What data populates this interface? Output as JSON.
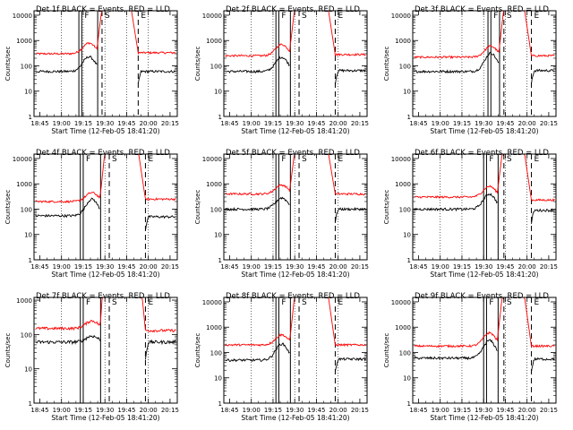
{
  "figure": {
    "xlabel": "Start Time (12-Feb-05 18:41:20)",
    "ylabel": "Counts/sec",
    "x_ticks": [
      "18:45",
      "19:00",
      "19:15",
      "19:30",
      "19:45",
      "20:00",
      "20:15"
    ],
    "y_ticks": [
      "1",
      "10",
      "100",
      "1000",
      "10000"
    ],
    "marker_labels": [
      "F",
      "S",
      "E"
    ]
  },
  "colors": {
    "events": "#000000",
    "lld": "#ff0000"
  },
  "chart_data": [
    {
      "title": "Det 1f BLACK = Events, RED = LLD",
      "type": "line",
      "xlim": [
        "18:41",
        "20:20"
      ],
      "ylim": [
        1,
        15000
      ],
      "yscale": "log",
      "events_base": 60,
      "events_peak": 230,
      "events_after": 60,
      "lld_base": 300,
      "lld_peak": 800,
      "lld_after": 330,
      "saturated": true,
      "vlines_solid": [
        "19:12",
        "19:14",
        "19:25"
      ],
      "vlines_dashed": [
        "19:28",
        "19:53"
      ],
      "vlines_dotted": [
        "19:00",
        "19:15",
        "19:30",
        "19:45",
        "20:00"
      ]
    },
    {
      "title": "Det 2f BLACK = Events, RED = LLD",
      "type": "line",
      "xlim": [
        "18:41",
        "20:20"
      ],
      "ylim": [
        1,
        15000
      ],
      "yscale": "log",
      "events_base": 60,
      "events_peak": 220,
      "events_after": 65,
      "lld_base": 250,
      "lld_peak": 700,
      "lld_after": 280,
      "saturated": true,
      "vlines_solid": [
        "19:17",
        "19:19",
        "19:27"
      ],
      "vlines_dashed": [
        "19:33",
        "19:58"
      ],
      "vlines_dotted": [
        "19:00",
        "19:15",
        "19:30",
        "19:45",
        "20:00"
      ]
    },
    {
      "title": "Det 3f BLACK = Events, RED = LLD",
      "type": "line",
      "xlim": [
        "18:41",
        "20:20"
      ],
      "ylim": [
        1,
        15000
      ],
      "yscale": "log",
      "events_base": 60,
      "events_peak": 320,
      "events_after": 65,
      "lld_base": 220,
      "lld_peak": 600,
      "lld_after": 250,
      "saturated": true,
      "vlines_solid": [
        "19:33",
        "19:35",
        "19:41"
      ],
      "vlines_dashed": [
        "19:44",
        "20:03"
      ],
      "vlines_dotted": [
        "19:00",
        "19:15",
        "19:30",
        "19:45",
        "20:00"
      ]
    },
    {
      "title": "Det 4f BLACK = Events, RED = LLD",
      "type": "line",
      "xlim": [
        "18:41",
        "20:20"
      ],
      "ylim": [
        1,
        15000
      ],
      "yscale": "log",
      "events_base": 55,
      "events_peak": 250,
      "events_after": 50,
      "lld_base": 200,
      "lld_peak": 450,
      "lld_after": 250,
      "saturated": true,
      "vlines_solid": [
        "19:13",
        "19:15",
        "19:27"
      ],
      "vlines_dashed": [
        "19:33",
        "19:58"
      ],
      "vlines_dotted": [
        "19:00",
        "19:15",
        "19:30",
        "19:45",
        "20:00"
      ]
    },
    {
      "title": "Det 5f BLACK = Events, RED = LLD",
      "type": "line",
      "xlim": [
        "18:41",
        "20:20"
      ],
      "ylim": [
        1,
        15000
      ],
      "yscale": "log",
      "events_base": 100,
      "events_peak": 280,
      "events_after": 100,
      "lld_base": 400,
      "lld_peak": 900,
      "lld_after": 400,
      "saturated": true,
      "vlines_solid": [
        "19:17",
        "19:19",
        "19:27"
      ],
      "vlines_dashed": [
        "19:33",
        "19:58"
      ],
      "vlines_dotted": [
        "19:00",
        "19:15",
        "19:30",
        "19:45",
        "20:00"
      ]
    },
    {
      "title": "Det 6f BLACK = Events, RED = LLD",
      "type": "line",
      "xlim": [
        "18:41",
        "20:20"
      ],
      "ylim": [
        1,
        15000
      ],
      "yscale": "log",
      "events_base": 100,
      "events_peak": 400,
      "events_after": 90,
      "lld_base": 300,
      "lld_peak": 800,
      "lld_after": 230,
      "saturated": true,
      "vlines_solid": [
        "19:30",
        "19:32",
        "19:40"
      ],
      "vlines_dashed": [
        "19:44",
        "20:03"
      ],
      "vlines_dotted": [
        "19:00",
        "19:15",
        "19:30",
        "19:45",
        "20:00"
      ]
    },
    {
      "title": "Det 7f BLACK = Events, RED = LLD",
      "type": "line",
      "xlim": [
        "18:41",
        "20:20"
      ],
      "ylim": [
        1,
        1200
      ],
      "yscale": "log",
      "events_base": 60,
      "events_peak": 90,
      "events_after": 60,
      "lld_base": 150,
      "lld_peak": 250,
      "lld_after": 130,
      "saturated": true,
      "vlines_solid": [
        "19:13",
        "19:15",
        "19:27"
      ],
      "vlines_dashed": [
        "19:33",
        "19:58"
      ],
      "vlines_dotted": [
        "19:00",
        "19:15",
        "19:30",
        "19:45",
        "20:00"
      ]
    },
    {
      "title": "Det 8f BLACK = Events, RED = LLD",
      "type": "line",
      "xlim": [
        "18:41",
        "20:20"
      ],
      "ylim": [
        1,
        15000
      ],
      "yscale": "log",
      "events_base": 50,
      "events_peak": 220,
      "events_after": 55,
      "lld_base": 200,
      "lld_peak": 500,
      "lld_after": 200,
      "saturated": true,
      "vlines_solid": [
        "19:17",
        "19:19",
        "19:27"
      ],
      "vlines_dashed": [
        "19:33",
        "19:58"
      ],
      "vlines_dotted": [
        "19:00",
        "19:15",
        "19:30",
        "19:45",
        "20:00"
      ]
    },
    {
      "title": "Det 9f BLACK = Events, RED = LLD",
      "type": "line",
      "xlim": [
        "18:41",
        "20:20"
      ],
      "ylim": [
        1,
        15000
      ],
      "yscale": "log",
      "events_base": 60,
      "events_peak": 300,
      "events_after": 55,
      "lld_base": 180,
      "lld_peak": 600,
      "lld_after": 180,
      "saturated": true,
      "vlines_solid": [
        "19:30",
        "19:32",
        "19:40"
      ],
      "vlines_dashed": [
        "19:44",
        "20:03"
      ],
      "vlines_dotted": [
        "19:00",
        "19:15",
        "19:30",
        "19:45",
        "20:00"
      ]
    }
  ]
}
